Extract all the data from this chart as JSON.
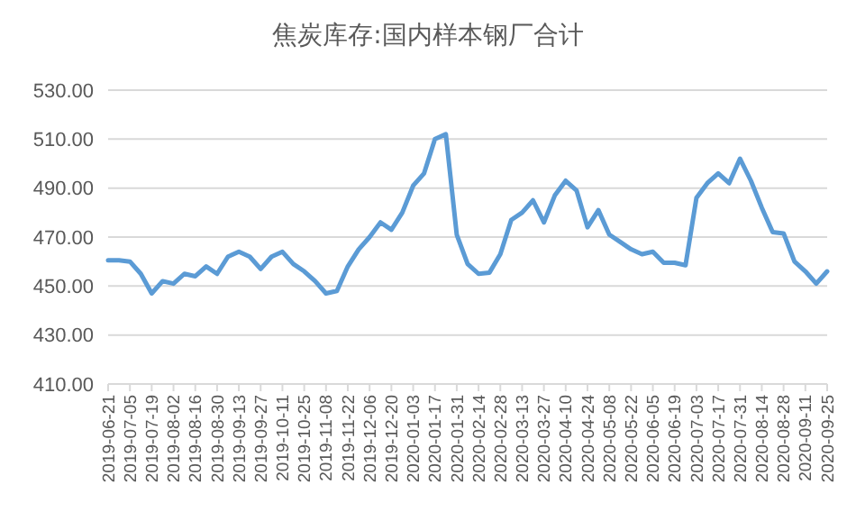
{
  "chart_data": {
    "type": "line",
    "title": "焦炭库存:国内样本钢厂合计",
    "x": [
      "2019-06-21",
      "2019-06-28",
      "2019-07-05",
      "2019-07-12",
      "2019-07-19",
      "2019-07-26",
      "2019-08-02",
      "2019-08-09",
      "2019-08-16",
      "2019-08-23",
      "2019-08-30",
      "2019-09-06",
      "2019-09-13",
      "2019-09-20",
      "2019-09-27",
      "2019-10-04",
      "2019-10-11",
      "2019-10-18",
      "2019-10-25",
      "2019-11-01",
      "2019-11-08",
      "2019-11-15",
      "2019-11-22",
      "2019-11-29",
      "2019-12-06",
      "2019-12-13",
      "2019-12-20",
      "2019-12-27",
      "2020-01-03",
      "2020-01-10",
      "2020-01-17",
      "2020-01-24",
      "2020-01-31",
      "2020-02-07",
      "2020-02-14",
      "2020-02-21",
      "2020-02-28",
      "2020-03-06",
      "2020-03-13",
      "2020-03-20",
      "2020-03-27",
      "2020-04-03",
      "2020-04-10",
      "2020-04-17",
      "2020-04-24",
      "2020-05-01",
      "2020-05-08",
      "2020-05-15",
      "2020-05-22",
      "2020-05-29",
      "2020-06-05",
      "2020-06-12",
      "2020-06-19",
      "2020-06-26",
      "2020-07-03",
      "2020-07-10",
      "2020-07-17",
      "2020-07-24",
      "2020-07-31",
      "2020-08-07",
      "2020-08-14",
      "2020-08-21",
      "2020-08-28",
      "2020-09-04",
      "2020-09-11",
      "2020-09-18",
      "2020-09-25"
    ],
    "series": [
      {
        "color": "#5b9bd5",
        "values": [
          460.5,
          460.5,
          460,
          455,
          447,
          452,
          451,
          455,
          454,
          458,
          455,
          462,
          464,
          462,
          457,
          462,
          464,
          459,
          456,
          452,
          447,
          448,
          458,
          465,
          470,
          476,
          473,
          480,
          491,
          496,
          510,
          512,
          471,
          459,
          455,
          455.5,
          463,
          477,
          480,
          485,
          476,
          487,
          493,
          489,
          474,
          481,
          471,
          468,
          465,
          463,
          464,
          459.5,
          459.5,
          458.5,
          486,
          492,
          496,
          492,
          502,
          493,
          482,
          472,
          471.5,
          460,
          456,
          451,
          456
        ]
      }
    ],
    "ylim": [
      410,
      530
    ],
    "yticks": [
      {
        "value": 410,
        "label": "410.00"
      },
      {
        "value": 430,
        "label": "430.00"
      },
      {
        "value": 450,
        "label": "450.00"
      },
      {
        "value": 470,
        "label": "470.00"
      },
      {
        "value": 490,
        "label": "490.00"
      },
      {
        "value": 510,
        "label": "510.00"
      },
      {
        "value": 530,
        "label": "530.00"
      }
    ],
    "xlim": [
      "2019-06-21",
      "2020-09-25"
    ],
    "xticks": [
      "2019-06-21",
      "2019-07-05",
      "2019-07-19",
      "2019-08-02",
      "2019-08-16",
      "2019-08-30",
      "2019-09-13",
      "2019-09-27",
      "2019-10-11",
      "2019-10-25",
      "2019-11-08",
      "2019-11-22",
      "2019-12-06",
      "2019-12-20",
      "2020-01-03",
      "2020-01-17",
      "2020-01-31",
      "2020-02-14",
      "2020-02-28",
      "2020-03-13",
      "2020-03-27",
      "2020-04-10",
      "2020-04-24",
      "2020-05-08",
      "2020-05-22",
      "2020-06-05",
      "2020-06-19",
      "2020-07-03",
      "2020-07-17",
      "2020-07-31",
      "2020-08-14",
      "2020-08-28",
      "2020-09-11",
      "2020-09-25"
    ],
    "grid": "y",
    "marker": "none",
    "line_style": "solid"
  }
}
